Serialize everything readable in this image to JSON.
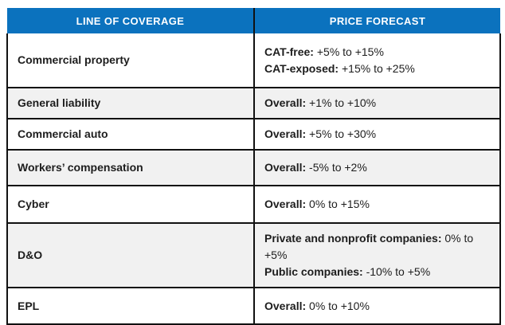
{
  "header": {
    "col1": "LINE OF COVERAGE",
    "col2": "PRICE FORECAST"
  },
  "rows": [
    {
      "coverage": "Commercial property",
      "forecast": [
        {
          "label": "CAT-free:",
          "value": "+5% to +15%"
        },
        {
          "label": "CAT-exposed:",
          "value": "+15% to +25%"
        }
      ]
    },
    {
      "coverage": "General liability",
      "forecast": [
        {
          "label": "Overall:",
          "value": "+1% to +10%"
        }
      ]
    },
    {
      "coverage": "Commercial auto",
      "forecast": [
        {
          "label": "Overall:",
          "value": "+5% to +30%"
        }
      ]
    },
    {
      "coverage": "Workers’ compensation",
      "forecast": [
        {
          "label": "Overall:",
          "value": "-5% to +2%"
        }
      ]
    },
    {
      "coverage": "Cyber",
      "forecast": [
        {
          "label": "Overall:",
          "value": "0% to +15%"
        }
      ]
    },
    {
      "coverage": "D&O",
      "forecast": [
        {
          "label": "Private and nonprofit companies:",
          "value": "0% to +5%"
        },
        {
          "label": "Public companies:",
          "value": "-10% to +5%"
        }
      ]
    },
    {
      "coverage": "EPL",
      "forecast": [
        {
          "label": "Overall:",
          "value": "0% to +10%"
        }
      ]
    }
  ],
  "colors": {
    "header_bg": "#0B72BE",
    "header_text": "#FFFFFF",
    "row_alt_bg": "#F1F1F1",
    "border": "#111111",
    "text": "#1D1D1D"
  }
}
